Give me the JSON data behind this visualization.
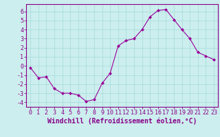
{
  "x": [
    0,
    1,
    2,
    3,
    4,
    5,
    6,
    7,
    8,
    9,
    10,
    11,
    12,
    13,
    14,
    15,
    16,
    17,
    18,
    19,
    20,
    21,
    22,
    23
  ],
  "y": [
    -0.2,
    -1.3,
    -1.2,
    -2.5,
    -3.0,
    -3.0,
    -3.2,
    -3.9,
    -3.7,
    -1.9,
    -0.8,
    2.2,
    2.8,
    3.0,
    4.0,
    5.4,
    6.1,
    6.2,
    5.1,
    4.0,
    3.0,
    1.5,
    1.1,
    0.7
  ],
  "line_color": "#990099",
  "marker": "D",
  "marker_size": 2,
  "bg_color": "#cceeee",
  "grid_color": "#aadddd",
  "xlabel": "Windchill (Refroidissement éolien,°C)",
  "xlim": [
    -0.5,
    23.5
  ],
  "ylim": [
    -4.5,
    6.8
  ],
  "yticks": [
    -4,
    -3,
    -2,
    -1,
    0,
    1,
    2,
    3,
    4,
    5,
    6
  ],
  "xticks": [
    0,
    1,
    2,
    3,
    4,
    5,
    6,
    7,
    8,
    9,
    10,
    11,
    12,
    13,
    14,
    15,
    16,
    17,
    18,
    19,
    20,
    21,
    22,
    23
  ],
  "tick_color": "#880088",
  "label_color": "#880088",
  "spine_color": "#880088",
  "tick_fontsize": 6,
  "xlabel_fontsize": 7
}
